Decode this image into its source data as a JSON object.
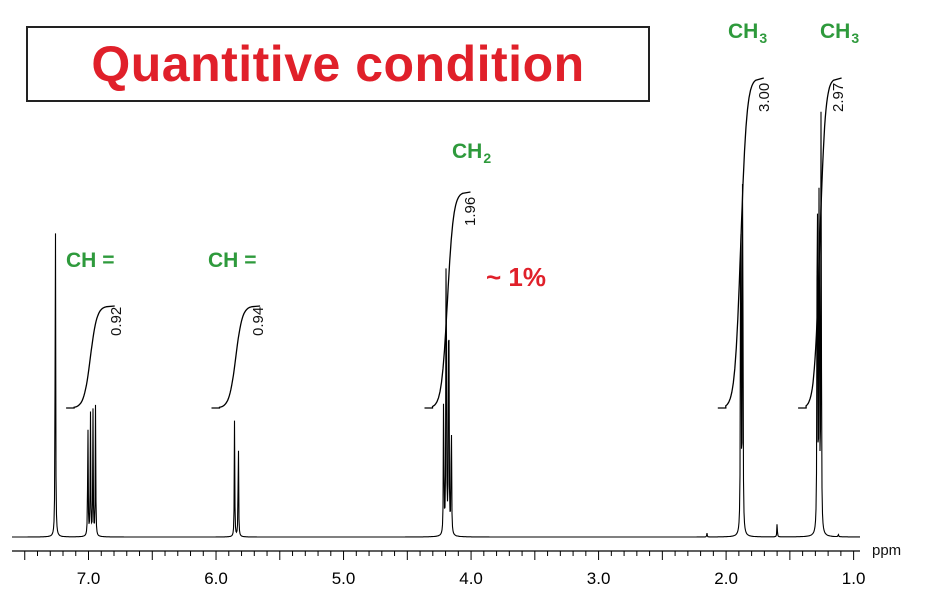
{
  "title": "Quantitive condition",
  "note": "~ 1%",
  "chart_data": {
    "type": "line",
    "title": "Quantitive condition",
    "xlabel": "ppm",
    "x_reversed": true,
    "xlim": [
      7.6,
      0.95
    ],
    "ticks": [
      {
        "value": 7.0,
        "label": "7.0"
      },
      {
        "value": 6.0,
        "label": "6.0"
      },
      {
        "value": 5.0,
        "label": "5.0"
      },
      {
        "value": 4.0,
        "label": "4.0"
      },
      {
        "value": 3.0,
        "label": "3.0"
      },
      {
        "value": 2.0,
        "label": "2.0"
      },
      {
        "value": 1.0,
        "label": "1.0"
      }
    ],
    "peaks": [
      {
        "ppm": 7.26,
        "height": 0.79
      },
      {
        "ppm": 7.005,
        "height": 0.26
      },
      {
        "ppm": 6.985,
        "height": 0.27
      },
      {
        "ppm": 6.965,
        "height": 0.26
      },
      {
        "ppm": 6.945,
        "height": 0.27
      },
      {
        "ppm": 5.855,
        "height": 0.24
      },
      {
        "ppm": 5.825,
        "height": 0.23
      },
      {
        "ppm": 4.215,
        "height": 0.34
      },
      {
        "ppm": 4.195,
        "height": 0.82
      },
      {
        "ppm": 4.175,
        "height": 0.7
      },
      {
        "ppm": 4.155,
        "height": 0.3
      },
      {
        "ppm": 1.885,
        "height": 1.0
      },
      {
        "ppm": 1.87,
        "height": 1.0
      },
      {
        "ppm": 1.6,
        "height": 0.03
      },
      {
        "ppm": 1.285,
        "height": 1.02
      },
      {
        "ppm": 1.27,
        "height": 1.0
      },
      {
        "ppm": 1.255,
        "height": 0.97
      },
      {
        "ppm": 2.15,
        "height": 0.008
      },
      {
        "ppm": 1.12,
        "height": 0.006
      }
    ],
    "groups": [
      {
        "label": "CH",
        "suffix": "=",
        "sub": "",
        "integral": "0.92",
        "range": [
          7.05,
          6.92
        ]
      },
      {
        "label": "CH",
        "suffix": "=",
        "sub": "",
        "integral": "0.94",
        "range": [
          5.91,
          5.78
        ]
      },
      {
        "label": "CH",
        "suffix": "",
        "sub": "2",
        "integral": "1.96",
        "range": [
          4.24,
          4.13
        ]
      },
      {
        "label": "CH",
        "suffix": "",
        "sub": "3",
        "integral": "3.00",
        "range": [
          1.94,
          1.83
        ]
      },
      {
        "label": "CH",
        "suffix": "",
        "sub": "3",
        "integral": "2.97",
        "range": [
          1.31,
          1.22
        ]
      }
    ]
  }
}
